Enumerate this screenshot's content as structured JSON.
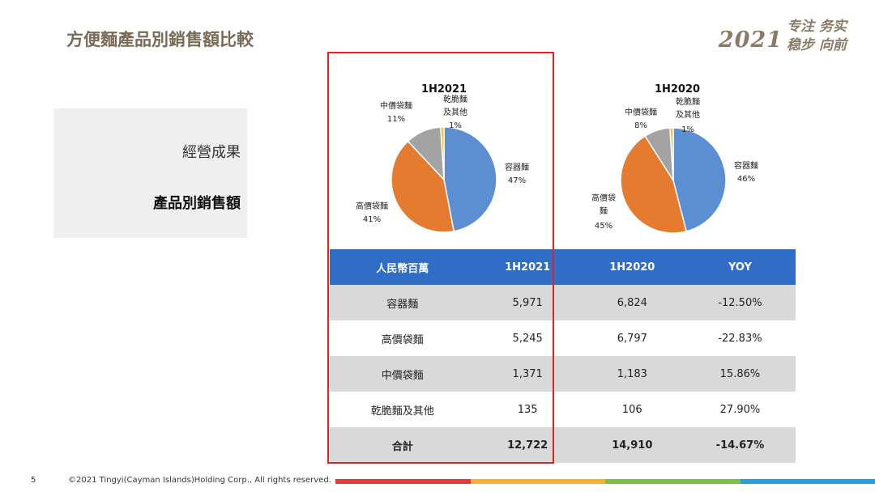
{
  "page": {
    "title": "方便麵產品別銷售額比較",
    "brand_year": "2021",
    "brand_slogan_line1": "专注 务实",
    "brand_slogan_line2": "稳步 向前"
  },
  "side_panel": {
    "item1": "經營成果",
    "item2": "產品別銷售額"
  },
  "chart_data": [
    {
      "type": "pie",
      "title": "1H2021",
      "slices": [
        {
          "label": "容器麵",
          "value": 47,
          "label_text": "47%",
          "color": "#5b8fd2"
        },
        {
          "label": "高價袋麵",
          "value": 41,
          "label_text": "41%",
          "color": "#e47b2e"
        },
        {
          "label": "中價袋麵",
          "value": 11,
          "label_text": "11%",
          "color": "#a3a3a3"
        },
        {
          "label": "乾脆麵及其他",
          "value": 1,
          "label_text": "1%",
          "color": "#f2c12e"
        }
      ]
    },
    {
      "type": "pie",
      "title": "1H2020",
      "slices": [
        {
          "label": "容器麵",
          "value": 46,
          "label_text": "46%",
          "color": "#5b8fd2"
        },
        {
          "label": "高價袋麵",
          "value": 45,
          "label_text": "45%",
          "color": "#e47b2e"
        },
        {
          "label": "中價袋麵",
          "value": 8,
          "label_text": "8%",
          "color": "#a3a3a3"
        },
        {
          "label": "乾脆麵及其他",
          "value": 1,
          "label_text": "1%",
          "color": "#f2c12e"
        }
      ]
    },
    {
      "type": "table",
      "columns": [
        "人民幣百萬",
        "1H2021",
        "1H2020",
        "YOY"
      ],
      "rows": [
        [
          "容器麵",
          "5,971",
          "6,824",
          "-12.50%"
        ],
        [
          "高價袋麵",
          "5,245",
          "6,797",
          "-22.83%"
        ],
        [
          "中價袋麵",
          "1,371",
          "1,183",
          "15.86%"
        ],
        [
          "乾脆麵及其他",
          "135",
          "106",
          "27.90%"
        ]
      ],
      "total": [
        "合計",
        "12,722",
        "14,910",
        "-14.67%"
      ]
    }
  ],
  "pie_labels": {
    "p1": {
      "s1": [
        "容器麵",
        "47%"
      ],
      "s2": [
        "高價袋麵",
        "41%"
      ],
      "s3": [
        "中價袋麵",
        "11%"
      ],
      "s4": [
        "乾脆麵",
        "及其他",
        "1%"
      ]
    },
    "p2": {
      "s1": [
        "容器麵",
        "46%"
      ],
      "s2": [
        "高價袋",
        "麵",
        "45%"
      ],
      "s3": [
        "中價袋麵",
        "8%"
      ],
      "s4": [
        "乾脆麵",
        "及其他",
        "1%"
      ]
    }
  },
  "footer": {
    "page_number": "5",
    "copyright": "©2021 Tingyi(Cayman Islands)Holding Corp., All rights reserved.",
    "bar_colors": [
      "#d9413a",
      "#f3b23a",
      "#7cc04a",
      "#2f9cd8"
    ]
  }
}
